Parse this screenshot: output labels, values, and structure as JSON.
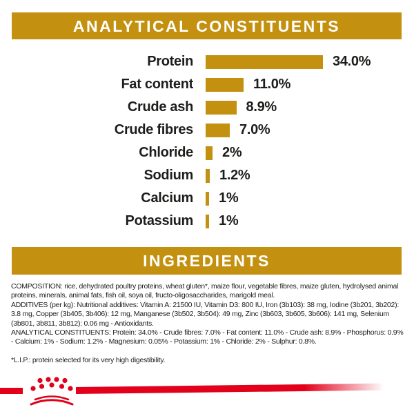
{
  "colors": {
    "gold": "#C3900F",
    "red": "#E2001A",
    "text": "#1D1D1B",
    "header_text": "#FFFFFF"
  },
  "section_analytical": {
    "title": "ANALYTICAL CONSTITUENTS"
  },
  "chart_data": {
    "type": "bar",
    "orientation": "horizontal",
    "title": "ANALYTICAL CONSTITUENTS",
    "categories": [
      "Protein",
      "Fat content",
      "Crude ash",
      "Crude fibres",
      "Chloride",
      "Sodium",
      "Calcium",
      "Potassium"
    ],
    "values": [
      34.0,
      11.0,
      8.9,
      7.0,
      2,
      1.2,
      1,
      1
    ],
    "value_labels": [
      "34.0%",
      "11.0%",
      "8.9%",
      "7.0%",
      "2%",
      "1.2%",
      "1%",
      "1%"
    ],
    "unit": "%",
    "xlim": [
      0,
      38
    ],
    "bar_color": "#C3900F",
    "grid": false,
    "legend": false,
    "value_label_position": "right-of-bar"
  },
  "section_ingredients": {
    "title": "INGREDIENTS"
  },
  "ingredients_text": {
    "composition": "COMPOSITION: rice, dehydrated poultry proteins, wheat gluten*, maize flour, vegetable fibres, maize gluten, hydrolysed animal proteins, minerals, animal fats, fish oil, soya oil, fructo-oligosaccharides, marigold meal.",
    "additives": "ADDITIVES (per kg): Nutritional additives: Vitamin A: 21500 IU, Vitamin D3: 800 IU, Iron (3b103): 38 mg, Iodine (3b201, 3b202): 3.8 mg, Copper (3b405, 3b406): 12 mg, Manganese (3b502, 3b504): 49 mg, Zinc (3b603, 3b605, 3b606): 141 mg, Selenium (3b801, 3b811, 3b812): 0.06 mg - Antioxidants.",
    "analytical_constituents": "ANALYTICAL CONSTITUENTS: Protein: 34.0% - Crude fibres: 7.0% - Fat content: 11.0% - Crude ash: 8.9% - Phosphorus: 0.9% - Calcium: 1% - Sodium: 1.2% - Magnesium: 0.05% - Potassium: 1% - Chloride: 2% - Sulphur: 0.8%."
  },
  "footnote": "*L.I.P.: protein selected for its very high digestibility.",
  "brand": {
    "logo": "royal-canin-crown",
    "stripe_color": "#E2001A"
  }
}
